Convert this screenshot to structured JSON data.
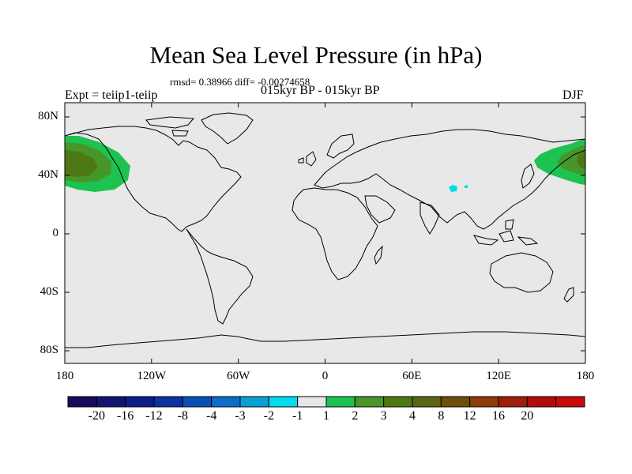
{
  "title": "Mean Sea Level Pressure (in hPa)",
  "stats": "rmsd= 0.38966 diff= -0.00274658",
  "left_label": "Expt = teiip1-teiip",
  "center_label": "015kyr BP - 015kyr BP",
  "right_label": "DJF",
  "lat_labels": [
    "80N",
    "40N",
    "0",
    "40S",
    "80S"
  ],
  "lon_labels": [
    "180",
    "120W",
    "60W",
    "0",
    "60E",
    "120E",
    "180"
  ],
  "colorbar": {
    "colors": [
      "#1a0a5a",
      "#141470",
      "#0a1e8a",
      "#0a32a0",
      "#0a50b4",
      "#0a6ec8",
      "#0aa0d7",
      "#00dceb",
      "#e6e6e6",
      "#1ec250",
      "#46962a",
      "#4e7814",
      "#5a6414",
      "#6e4e0a",
      "#8c3c0a",
      "#a01e0a",
      "#b40a0a",
      "#c80a0a"
    ],
    "labels": [
      "-20",
      "-16",
      "-12",
      "-8",
      "-4",
      "-3",
      "-2",
      "-1",
      "1",
      "2",
      "3",
      "4",
      "8",
      "12",
      "16",
      "20"
    ]
  },
  "map_colors": {
    "background": "#e8e8e8",
    "coast": "#000000",
    "anomaly_light_green": "#1ec250",
    "anomaly_dark_green": "#46962a",
    "anomaly_olive": "#4e7814",
    "anomaly_cyan": "#00dceb"
  }
}
